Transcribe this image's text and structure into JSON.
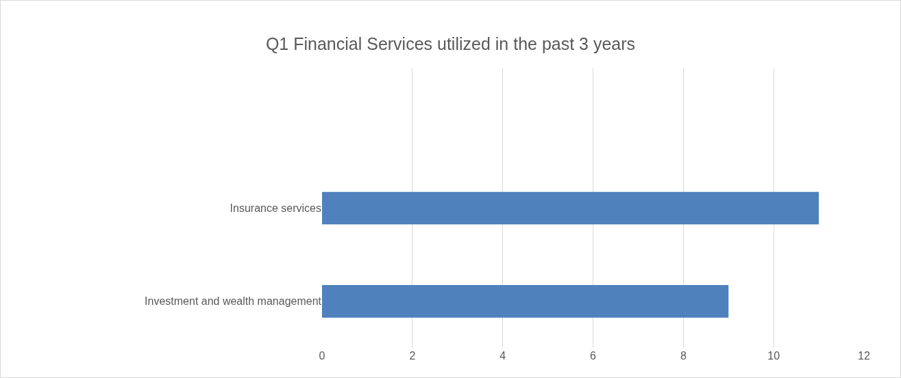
{
  "chart_data": {
    "type": "bar",
    "title": "Q1 Financial Services utilized in the past 3 years",
    "orientation": "horizontal",
    "categories": [
      null,
      "Insurance services",
      "Investment and wealth management"
    ],
    "values": [
      null,
      11,
      9
    ],
    "color": "#4f81bd",
    "xlim": [
      0,
      12
    ],
    "xticks": [
      0,
      2,
      4,
      6,
      8,
      10,
      12
    ],
    "grid": "x"
  }
}
